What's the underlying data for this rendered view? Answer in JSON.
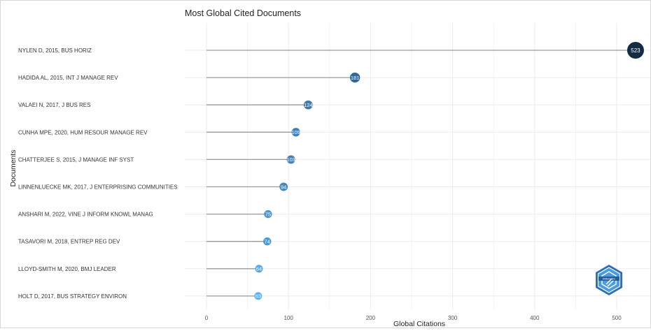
{
  "chart_data": {
    "type": "lollipop",
    "title": "Most Global Cited Documents",
    "xlabel": "Global Citations",
    "ylabel": "Documents",
    "xlim": [
      0,
      540
    ],
    "xticks": [
      0,
      100,
      200,
      300,
      400,
      500
    ],
    "grid": true,
    "categories": [
      "NYLEN D, 2015, BUS HORIZ",
      "HADIDA AL, 2015, INT J MANAGE REV",
      "VALAEI N, 2017, J BUS RES",
      "CUNHA MPE, 2020, HUM RESOUR MANAGE REV",
      "CHATTERJEE S, 2015, J MANAGE INF SYST",
      "LINNENLUECKE MK, 2017, J ENTERPRISING COMMUNITIES",
      "ANSHARI M, 2022, VINE J INFORM KNOWL MANAG",
      "TASAVORI M, 2018, ENTREP REG DEV",
      "LLOYD-SMITH M, 2020, BMJ LEADER",
      "HOLT D, 2017, BUS STRATEGY ENVIRON"
    ],
    "values": [
      523,
      181,
      124,
      109,
      103,
      94,
      75,
      74,
      64,
      63
    ],
    "labels": [
      "523",
      "181",
      "124",
      "109",
      "103",
      "94",
      "75",
      "74",
      "64",
      "63"
    ],
    "colors": {
      "high": "#132b43",
      "low": "#56b1f7",
      "stem": "#9a9a9a",
      "grid": "#ebebeb"
    }
  },
  "logo": {
    "name": "bibliometrix-logo-icon",
    "text": "bibliometrix"
  }
}
